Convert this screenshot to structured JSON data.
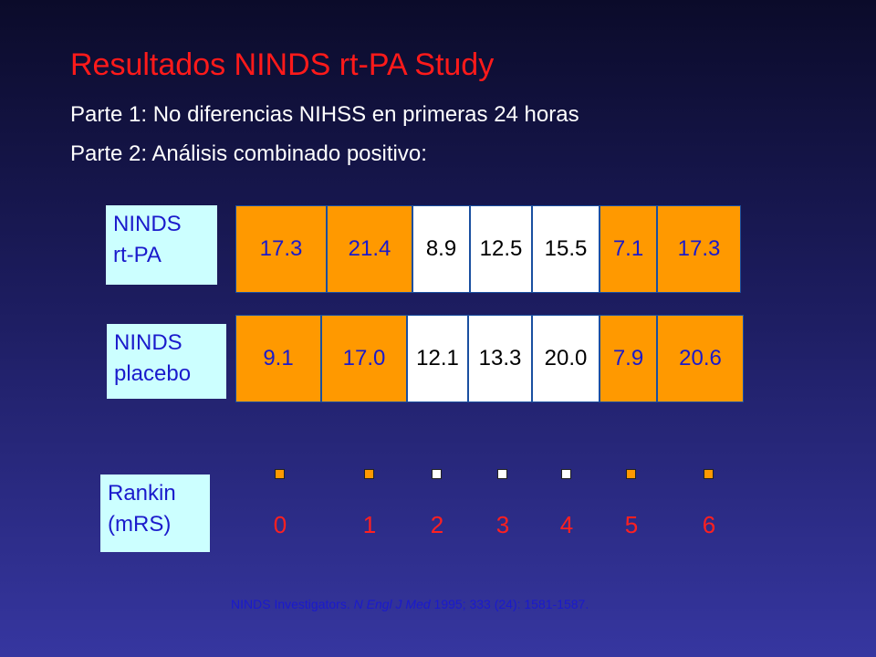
{
  "header": {
    "title": "Resultados NINDS rt-PA Study",
    "lines": [
      "Parte 1: No diferencias NIHSS en primeras 24 horas",
      "Parte 2:  Análisis combinado positivo:"
    ]
  },
  "rows": [
    {
      "label": [
        "NINDS",
        "rt-PA"
      ],
      "values": [
        "17.3",
        "21.4",
        "8.9",
        "12.5",
        "15.5",
        "7.1",
        "17.3"
      ]
    },
    {
      "label": [
        "NINDS",
        "placebo"
      ],
      "values": [
        "9.1",
        "17.0",
        "12.1",
        "13.3",
        "20.0",
        "7.9",
        "20.6"
      ]
    }
  ],
  "rankin": {
    "label": [
      "Rankin",
      "(mRS)"
    ],
    "grades": [
      "0",
      "1",
      "2",
      "3",
      "4",
      "5",
      "6"
    ],
    "colors": [
      "#ff9900",
      "#ff9900",
      "#ffffff",
      "#ffffff",
      "#ffffff",
      "#ff9900",
      "#ff9900"
    ]
  },
  "citation": {
    "before": "NINDS Investigators. ",
    "journal": "N Engl J Med",
    "after": " 1995; 333 (24): 1581-1587."
  }
}
